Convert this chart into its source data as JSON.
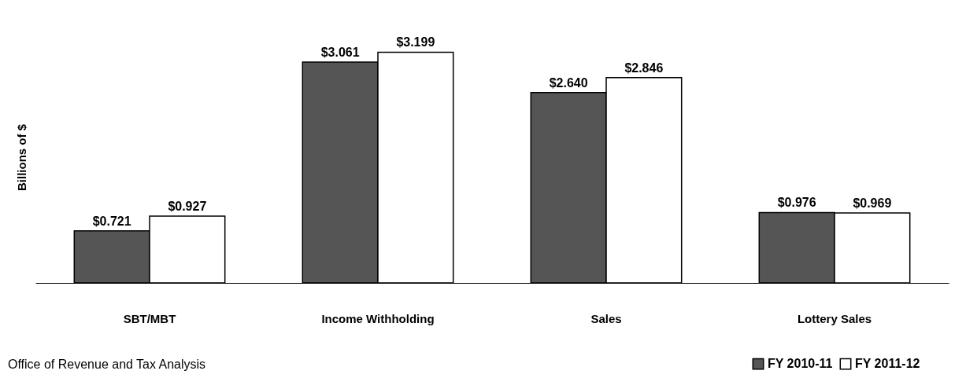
{
  "chart_data": {
    "type": "bar",
    "ylabel": "Billions of $",
    "categories": [
      "SBT/MBT",
      "Income Withholding",
      "Sales",
      "Lottery Sales"
    ],
    "series": [
      {
        "name": "FY 2010-11",
        "color": "#555555",
        "values": [
          0.721,
          3.061,
          2.64,
          0.976
        ],
        "value_labels": [
          "$0.721",
          "$3.061",
          "$2.640",
          "$0.976"
        ]
      },
      {
        "name": "FY 2011-12",
        "color": "#ffffff",
        "values": [
          0.927,
          3.199,
          2.846,
          0.969
        ],
        "value_labels": [
          "$0.927",
          "$3.199",
          "$2.846",
          "$0.969"
        ]
      }
    ],
    "tick_labels": "x",
    "grid": false,
    "legend": "bottom right",
    "annotations": [
      "Office of Revenue and Tax Analysis"
    ]
  }
}
